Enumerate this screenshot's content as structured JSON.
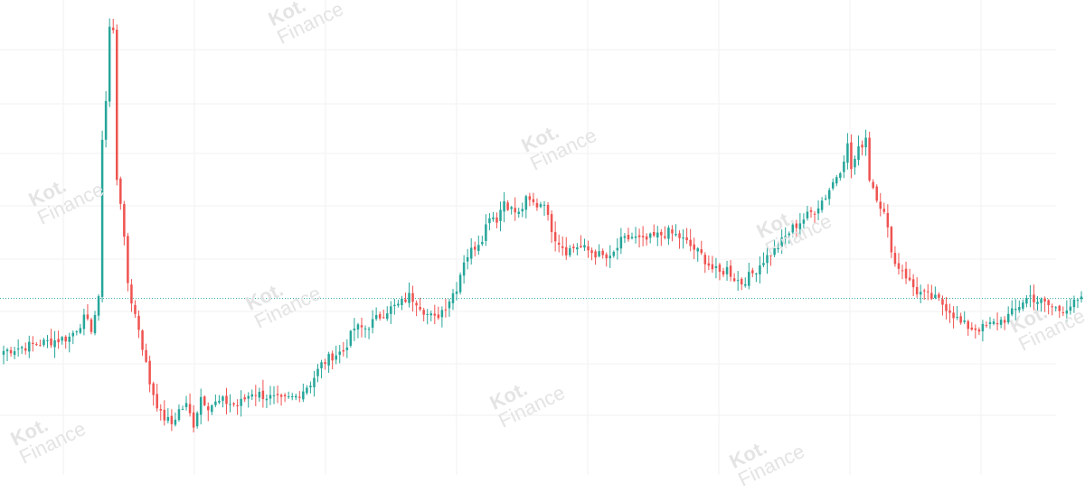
{
  "watermark": {
    "brand": "Kot.",
    "sub": "Finance"
  },
  "colors": {
    "up": "#26a69a",
    "down": "#ef5350",
    "grid": "#f2f2f2",
    "price_line": "#26a69a",
    "watermark": "#e4e4e4"
  },
  "chart_data": {
    "type": "candlestick",
    "ylim": [
      0,
      100
    ],
    "grid": true,
    "current_price_line": 36.5,
    "anchors": [
      [
        0,
        25
      ],
      [
        12,
        27
      ],
      [
        18,
        28
      ],
      [
        22,
        32
      ],
      [
        24,
        30
      ],
      [
        26,
        36
      ],
      [
        27,
        72
      ],
      [
        28,
        80
      ],
      [
        29,
        96
      ],
      [
        30,
        95
      ],
      [
        31,
        63
      ],
      [
        32,
        58
      ],
      [
        33,
        49
      ],
      [
        34,
        40
      ],
      [
        35,
        36
      ],
      [
        37,
        30
      ],
      [
        40,
        18
      ],
      [
        43,
        11
      ],
      [
        46,
        9
      ],
      [
        48,
        12
      ],
      [
        50,
        13
      ],
      [
        52,
        9
      ],
      [
        54,
        15
      ],
      [
        56,
        13
      ],
      [
        60,
        14
      ],
      [
        64,
        13
      ],
      [
        68,
        16
      ],
      [
        72,
        15
      ],
      [
        76,
        14
      ],
      [
        80,
        15
      ],
      [
        84,
        18
      ],
      [
        87,
        22
      ],
      [
        90,
        24
      ],
      [
        93,
        25
      ],
      [
        96,
        30
      ],
      [
        99,
        30
      ],
      [
        102,
        32
      ],
      [
        105,
        34
      ],
      [
        108,
        35
      ],
      [
        111,
        37
      ],
      [
        113,
        36
      ],
      [
        116,
        33
      ],
      [
        118,
        32
      ],
      [
        121,
        35
      ],
      [
        124,
        39
      ],
      [
        126,
        45
      ],
      [
        129,
        48
      ],
      [
        131,
        50
      ],
      [
        133,
        55
      ],
      [
        135,
        54
      ],
      [
        137,
        58
      ],
      [
        139,
        56
      ],
      [
        141,
        55
      ],
      [
        143,
        58
      ],
      [
        146,
        57
      ],
      [
        148,
        58
      ],
      [
        149,
        54
      ],
      [
        151,
        50
      ],
      [
        154,
        47
      ],
      [
        157,
        48
      ],
      [
        160,
        47
      ],
      [
        163,
        46
      ],
      [
        166,
        45
      ],
      [
        169,
        49
      ],
      [
        172,
        50
      ],
      [
        175,
        49
      ],
      [
        178,
        50
      ],
      [
        182,
        51
      ],
      [
        185,
        50
      ],
      [
        188,
        48
      ],
      [
        191,
        46
      ],
      [
        194,
        43
      ],
      [
        196,
        42
      ],
      [
        198,
        43
      ],
      [
        200,
        41
      ],
      [
        202,
        40
      ],
      [
        205,
        42
      ],
      [
        208,
        45
      ],
      [
        211,
        47
      ],
      [
        214,
        50
      ],
      [
        216,
        52
      ],
      [
        219,
        54
      ],
      [
        222,
        56
      ],
      [
        225,
        59
      ],
      [
        227,
        62
      ],
      [
        229,
        65
      ],
      [
        231,
        70
      ],
      [
        232,
        65
      ],
      [
        234,
        69
      ],
      [
        236,
        72
      ],
      [
        237,
        63
      ],
      [
        239,
        59
      ],
      [
        241,
        55
      ],
      [
        244,
        44
      ],
      [
        246,
        43
      ],
      [
        248,
        40
      ],
      [
        250,
        38
      ],
      [
        253,
        37
      ],
      [
        256,
        36
      ],
      [
        259,
        34
      ],
      [
        262,
        31
      ],
      [
        265,
        30
      ],
      [
        268,
        30
      ],
      [
        271,
        31
      ],
      [
        274,
        32
      ],
      [
        277,
        34
      ],
      [
        279,
        36
      ],
      [
        281,
        37
      ],
      [
        283,
        36
      ],
      [
        286,
        35
      ],
      [
        289,
        34
      ],
      [
        292,
        35
      ],
      [
        295,
        36
      ]
    ]
  }
}
